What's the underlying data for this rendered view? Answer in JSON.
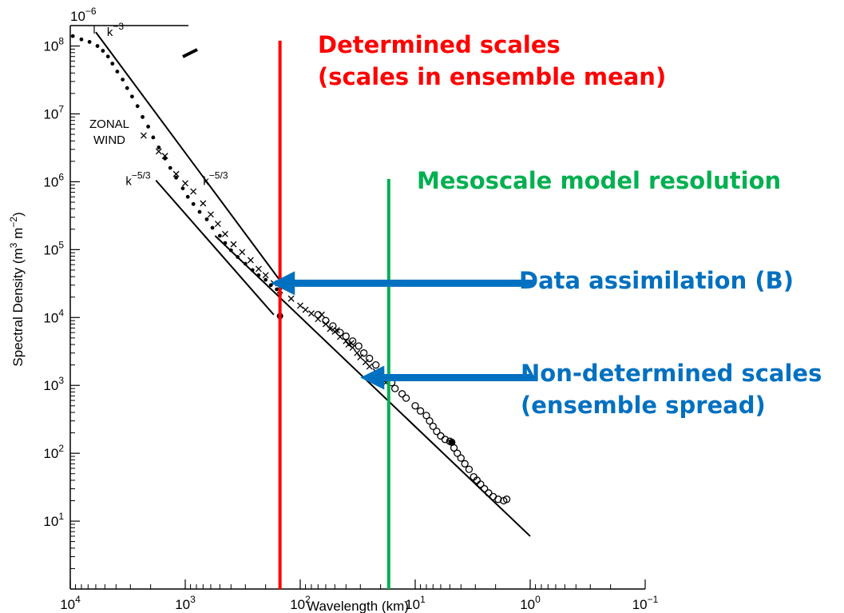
{
  "chart_data": {
    "type": "scatter",
    "xlabel": "Wavelength (km)",
    "ylabel": "Spectral Density (m3 m−2)",
    "xscale": "log",
    "yscale": "log",
    "x_reversed": true,
    "xlim": [
      10000,
      0.1
    ],
    "ylim": [
      1,
      200000000
    ],
    "x_ticks": [
      {
        "value": 10000,
        "base": "10",
        "exp": "4"
      },
      {
        "value": 1000,
        "base": "10",
        "exp": "3"
      },
      {
        "value": 100,
        "base": "10",
        "exp": "2"
      },
      {
        "value": 10,
        "base": "10",
        "exp": "1"
      },
      {
        "value": 1,
        "base": "10",
        "exp": "0"
      },
      {
        "value": 0.1,
        "base": "10",
        "exp": "−1"
      }
    ],
    "y_ticks": [
      {
        "value": 10,
        "base": "10",
        "exp": "1"
      },
      {
        "value": 100,
        "base": "10",
        "exp": "2"
      },
      {
        "value": 1000,
        "base": "10",
        "exp": "3"
      },
      {
        "value": 10000,
        "base": "10",
        "exp": "4"
      },
      {
        "value": 100000,
        "base": "10",
        "exp": "5"
      },
      {
        "value": 1000000,
        "base": "10",
        "exp": "6"
      },
      {
        "value": 10000000,
        "base": "10",
        "exp": "7"
      },
      {
        "value": 100000000,
        "base": "10",
        "exp": "8"
      }
    ],
    "top_tick_label": {
      "base": "10",
      "exp": "−6"
    },
    "panel_label": [
      "ZONAL",
      "WIND"
    ],
    "series": [
      {
        "marker": "dot",
        "points": [
          [
            9500,
            140000000
          ],
          [
            8000,
            125000000
          ],
          [
            6800,
            115000000
          ],
          [
            5800,
            100000000
          ],
          [
            5200,
            85000000
          ],
          [
            4700,
            70000000
          ],
          [
            4300,
            55000000
          ],
          [
            3900,
            42000000
          ],
          [
            3500,
            32000000
          ],
          [
            3200,
            24000000
          ],
          [
            2900,
            18000000
          ],
          [
            2600,
            13000000
          ],
          [
            2350,
            9000000
          ],
          [
            2100,
            6500000
          ],
          [
            1900,
            4500000
          ],
          [
            1700,
            3200000
          ],
          [
            1500,
            2200000
          ],
          [
            1350,
            1600000
          ],
          [
            1200,
            1150000
          ],
          [
            1050,
            800000
          ],
          [
            950,
            600000
          ],
          [
            850,
            470000
          ],
          [
            750,
            360000
          ],
          [
            650,
            280000
          ],
          [
            580,
            210000
          ],
          [
            500,
            160000
          ],
          [
            450,
            125000
          ],
          [
            400,
            98000
          ],
          [
            350,
            78000
          ],
          [
            300,
            62000
          ],
          [
            260,
            50000
          ],
          [
            230,
            42000
          ],
          [
            200,
            36000
          ],
          [
            180,
            30000
          ],
          [
            160,
            26000
          ],
          [
            150,
            22000
          ]
        ]
      },
      {
        "marker": "cross",
        "points": [
          [
            2300,
            4800000
          ],
          [
            1700,
            2800000
          ],
          [
            1500,
            2400000
          ],
          [
            1200,
            1300000
          ],
          [
            1000,
            950000
          ],
          [
            850,
            720000
          ],
          [
            700,
            480000
          ],
          [
            600,
            330000
          ],
          [
            520,
            240000
          ],
          [
            450,
            170000
          ],
          [
            380,
            120000
          ],
          [
            320,
            92000
          ],
          [
            270,
            70000
          ],
          [
            230,
            52000
          ],
          [
            200,
            42000
          ],
          [
            170,
            32000
          ],
          [
            150,
            25000
          ],
          [
            120,
            19000
          ],
          [
            100,
            15000
          ],
          [
            90,
            13000
          ],
          [
            80,
            11500
          ],
          [
            70,
            9500
          ],
          [
            60,
            8000
          ],
          [
            55,
            6800
          ],
          [
            50,
            6200
          ],
          [
            45,
            5200
          ],
          [
            40,
            4500
          ],
          [
            38,
            4000
          ],
          [
            35,
            3600
          ],
          [
            32,
            3000
          ],
          [
            30,
            2600
          ],
          [
            27,
            2200
          ],
          [
            25,
            1900
          ],
          [
            22,
            1600
          ],
          [
            20,
            1300
          ],
          [
            18,
            1100
          ],
          [
            65,
            11000
          ],
          [
            48,
            6500
          ],
          [
            36,
            4200
          ]
        ]
      },
      {
        "marker": "circle",
        "points": [
          [
            70,
            11000
          ],
          [
            60,
            9000
          ],
          [
            52,
            7500
          ],
          [
            45,
            6000
          ],
          [
            40,
            5300
          ],
          [
            35,
            4500
          ],
          [
            31,
            3800
          ],
          [
            28,
            3000
          ],
          [
            25,
            2500
          ],
          [
            22,
            2000
          ],
          [
            20,
            1600
          ],
          [
            18,
            1300
          ],
          [
            16,
            1100
          ],
          [
            15,
            900
          ],
          [
            13,
            750
          ],
          [
            12,
            650
          ],
          [
            10,
            500
          ],
          [
            9,
            420
          ],
          [
            8,
            360
          ],
          [
            7.5,
            300
          ],
          [
            7,
            250
          ],
          [
            6.5,
            210
          ],
          [
            6,
            180
          ],
          [
            5.5,
            160
          ],
          [
            5,
            150
          ],
          [
            4.6,
            120
          ],
          [
            4.3,
            100
          ],
          [
            4,
            85
          ],
          [
            3.7,
            70
          ],
          [
            3.4,
            58
          ],
          [
            3.1,
            45
          ],
          [
            2.9,
            40
          ],
          [
            2.7,
            35
          ],
          [
            2.5,
            30
          ],
          [
            2.3,
            26
          ],
          [
            2.1,
            23
          ],
          [
            1.9,
            21
          ],
          [
            1.7,
            20
          ],
          [
            1.6,
            21
          ]
        ]
      }
    ],
    "ref_lines": [
      {
        "from": [
          6000,
          160000000
        ],
        "to": [
          140,
          30000
        ]
      },
      {
        "from": [
          1800,
          1050000
        ],
        "to": [
          170,
          11000
        ]
      },
      {
        "from": [
          550,
          160000
        ],
        "to": [
          1,
          6
        ]
      }
    ],
    "slope_labels": [
      {
        "base": "k",
        "exp": "−3",
        "x": 4800,
        "y": 140000000
      },
      {
        "base": "k",
        "exp": "−5/3",
        "x": 3300,
        "y": 900000
      },
      {
        "base": "k",
        "exp": "−5/3",
        "x": 700,
        "y": 900000
      }
    ],
    "vlines": [
      {
        "x": 150,
        "color": "#ff0000",
        "y_top": 120000000
      },
      {
        "x": 17,
        "color": "#00b050",
        "y_top": 1100000
      }
    ],
    "arrows": [
      {
        "color": "#0070c0",
        "x_tail": 0.95,
        "x_head": 180,
        "y": 32000
      },
      {
        "color": "#0070c0",
        "x_tail": 0.95,
        "x_head": 30,
        "y": 1300
      }
    ],
    "annotations": [
      {
        "lines": [
          "Determined scales",
          "(scales in ensemble mean)"
        ],
        "color": "#ff0000"
      },
      {
        "lines": [
          "Mesoscale model resolution"
        ],
        "color": "#00b050"
      },
      {
        "lines": [
          "Data assimilation (B)"
        ],
        "color": "#0070c0"
      },
      {
        "lines": [
          "Non-determined scales",
          "(ensemble spread)"
        ],
        "color": "#0070c0"
      }
    ]
  }
}
